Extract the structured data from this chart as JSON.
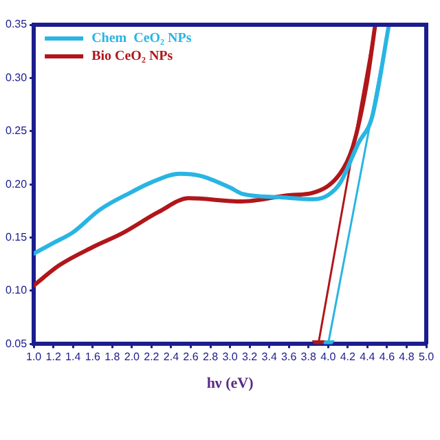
{
  "chart_data": {
    "type": "line",
    "xlabel": "hν (eV)",
    "xlim": [
      1.0,
      5.0
    ],
    "ylim": [
      0.05,
      0.35
    ],
    "xticks": [
      {
        "value": 1.0,
        "label": "1.0"
      },
      {
        "value": 1.2,
        "label": "1.2"
      },
      {
        "value": 1.4,
        "label": "1.4"
      },
      {
        "value": 1.6,
        "label": "1.6"
      },
      {
        "value": 1.8,
        "label": "1.8"
      },
      {
        "value": 2.0,
        "label": "2.0"
      },
      {
        "value": 2.2,
        "label": "2.2"
      },
      {
        "value": 2.4,
        "label": "2.4"
      },
      {
        "value": 2.6,
        "label": "2.6"
      },
      {
        "value": 2.8,
        "label": "2.8"
      },
      {
        "value": 3.0,
        "label": "3.0"
      },
      {
        "value": 3.2,
        "label": "3.2"
      },
      {
        "value": 3.4,
        "label": "3.4"
      },
      {
        "value": 3.6,
        "label": "3.6"
      },
      {
        "value": 3.8,
        "label": "3.8"
      },
      {
        "value": 4.0,
        "label": "4.0"
      },
      {
        "value": 4.2,
        "label": "4.2"
      },
      {
        "value": 4.4,
        "label": "4.4"
      },
      {
        "value": 4.6,
        "label": "4.6"
      },
      {
        "value": 4.8,
        "label": "4.8"
      },
      {
        "value": 5.0,
        "label": "5.0"
      }
    ],
    "yticks": [
      {
        "value": 0.05,
        "label": "0.05"
      },
      {
        "value": 0.1,
        "label": "0.10"
      },
      {
        "value": 0.15,
        "label": "0.15"
      },
      {
        "value": 0.2,
        "label": "0.20"
      },
      {
        "value": 0.25,
        "label": "0.25"
      },
      {
        "value": 0.3,
        "label": "0.30"
      },
      {
        "value": 0.35,
        "label": "0.35"
      }
    ],
    "grid": false,
    "legend": "top left",
    "marker": "none",
    "line_style": "solid",
    "series": [
      {
        "name": "Chem  CeO₂ NPs",
        "color": "#29b5e3",
        "x": [
          1.0,
          1.2,
          1.4,
          1.67,
          2.0,
          2.2,
          2.49,
          2.7,
          3.0,
          3.13,
          3.5,
          3.85,
          4.0,
          4.12,
          4.31,
          4.45,
          4.62
        ],
        "values": [
          0.135,
          0.145,
          0.155,
          0.176,
          0.193,
          0.202,
          0.21,
          0.208,
          0.197,
          0.191,
          0.188,
          0.186,
          0.19,
          0.201,
          0.239,
          0.264,
          0.35
        ]
      },
      {
        "name": "Bio CeO₂ NPs",
        "color": "#b0161a",
        "x": [
          1.0,
          1.26,
          1.6,
          1.9,
          2.27,
          2.58,
          3.12,
          3.62,
          3.84,
          4.12,
          4.25,
          4.39,
          4.48
        ],
        "values": [
          0.105,
          0.124,
          0.141,
          0.154,
          0.174,
          0.187,
          0.184,
          0.19,
          0.192,
          0.21,
          0.235,
          0.293,
          0.35
        ]
      },
      {
        "color": "#b0161a",
        "marker": "triangle",
        "x": [
          3.9,
          4.48
        ],
        "values": [
          0.05,
          0.35
        ]
      },
      {
        "color": "#29b5e3",
        "marker": "triangle",
        "x": [
          4.0,
          4.62
        ],
        "values": [
          0.05,
          0.35
        ]
      }
    ]
  }
}
